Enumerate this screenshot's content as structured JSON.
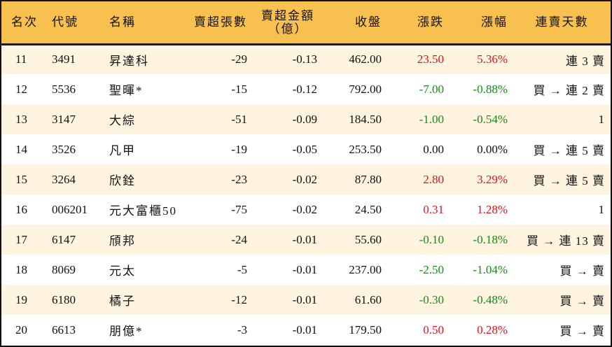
{
  "table": {
    "headers": {
      "rank": "名次",
      "code": "代號",
      "name": "名稱",
      "net_sell_lots": "賣超張數",
      "net_sell_amount_line1": "賣超金額",
      "net_sell_amount_line2": "（億）",
      "close": "收盤",
      "change": "漲跌",
      "change_pct": "漲幅",
      "streak": "連賣天數"
    },
    "rows": [
      {
        "rank": "11",
        "code": "3491",
        "name": "昇達科",
        "net_sell_lots": "-29",
        "net_sell_amount": "-0.13",
        "close": "462.00",
        "change": "23.50",
        "change_pct": "5.36%",
        "direction": "up",
        "streak": "連 3 賣"
      },
      {
        "rank": "12",
        "code": "5536",
        "name": "聖暉*",
        "net_sell_lots": "-15",
        "net_sell_amount": "-0.12",
        "close": "792.00",
        "change": "-7.00",
        "change_pct": "-0.88%",
        "direction": "down",
        "streak": "買 → 連 2 賣"
      },
      {
        "rank": "13",
        "code": "3147",
        "name": "大綜",
        "net_sell_lots": "-51",
        "net_sell_amount": "-0.09",
        "close": "184.50",
        "change": "-1.00",
        "change_pct": "-0.54%",
        "direction": "down",
        "streak": "1"
      },
      {
        "rank": "14",
        "code": "3526",
        "name": "凡甲",
        "net_sell_lots": "-19",
        "net_sell_amount": "-0.05",
        "close": "253.50",
        "change": "0.00",
        "change_pct": "0.00%",
        "direction": "flat",
        "streak": "買 → 連 5 賣"
      },
      {
        "rank": "15",
        "code": "3264",
        "name": "欣銓",
        "net_sell_lots": "-23",
        "net_sell_amount": "-0.02",
        "close": "87.80",
        "change": "2.80",
        "change_pct": "3.29%",
        "direction": "up",
        "streak": "買 → 連 5 賣"
      },
      {
        "rank": "16",
        "code": "006201",
        "name": "元大富櫃50",
        "net_sell_lots": "-75",
        "net_sell_amount": "-0.02",
        "close": "24.50",
        "change": "0.31",
        "change_pct": "1.28%",
        "direction": "up",
        "streak": "1"
      },
      {
        "rank": "17",
        "code": "6147",
        "name": "頎邦",
        "net_sell_lots": "-24",
        "net_sell_amount": "-0.01",
        "close": "55.60",
        "change": "-0.10",
        "change_pct": "-0.18%",
        "direction": "down",
        "streak": "買 → 連 13 賣"
      },
      {
        "rank": "18",
        "code": "8069",
        "name": "元太",
        "net_sell_lots": "-5",
        "net_sell_amount": "-0.01",
        "close": "237.00",
        "change": "-2.50",
        "change_pct": "-1.04%",
        "direction": "down",
        "streak": "買 → 賣"
      },
      {
        "rank": "19",
        "code": "6180",
        "name": "橘子",
        "net_sell_lots": "-12",
        "net_sell_amount": "-0.01",
        "close": "61.60",
        "change": "-0.30",
        "change_pct": "-0.48%",
        "direction": "down",
        "streak": "買 → 賣"
      },
      {
        "rank": "20",
        "code": "6613",
        "name": "朋億*",
        "net_sell_lots": "-3",
        "net_sell_amount": "-0.01",
        "close": "179.50",
        "change": "0.50",
        "change_pct": "0.28%",
        "direction": "up",
        "streak": "買 → 賣"
      }
    ]
  },
  "colors": {
    "header_bg": "#F8C04E",
    "row_alt_bg": "#FEF4DF",
    "row_bg": "#FFFFFF",
    "up": "#E8101A",
    "down": "#178A17",
    "border": "#111111"
  }
}
